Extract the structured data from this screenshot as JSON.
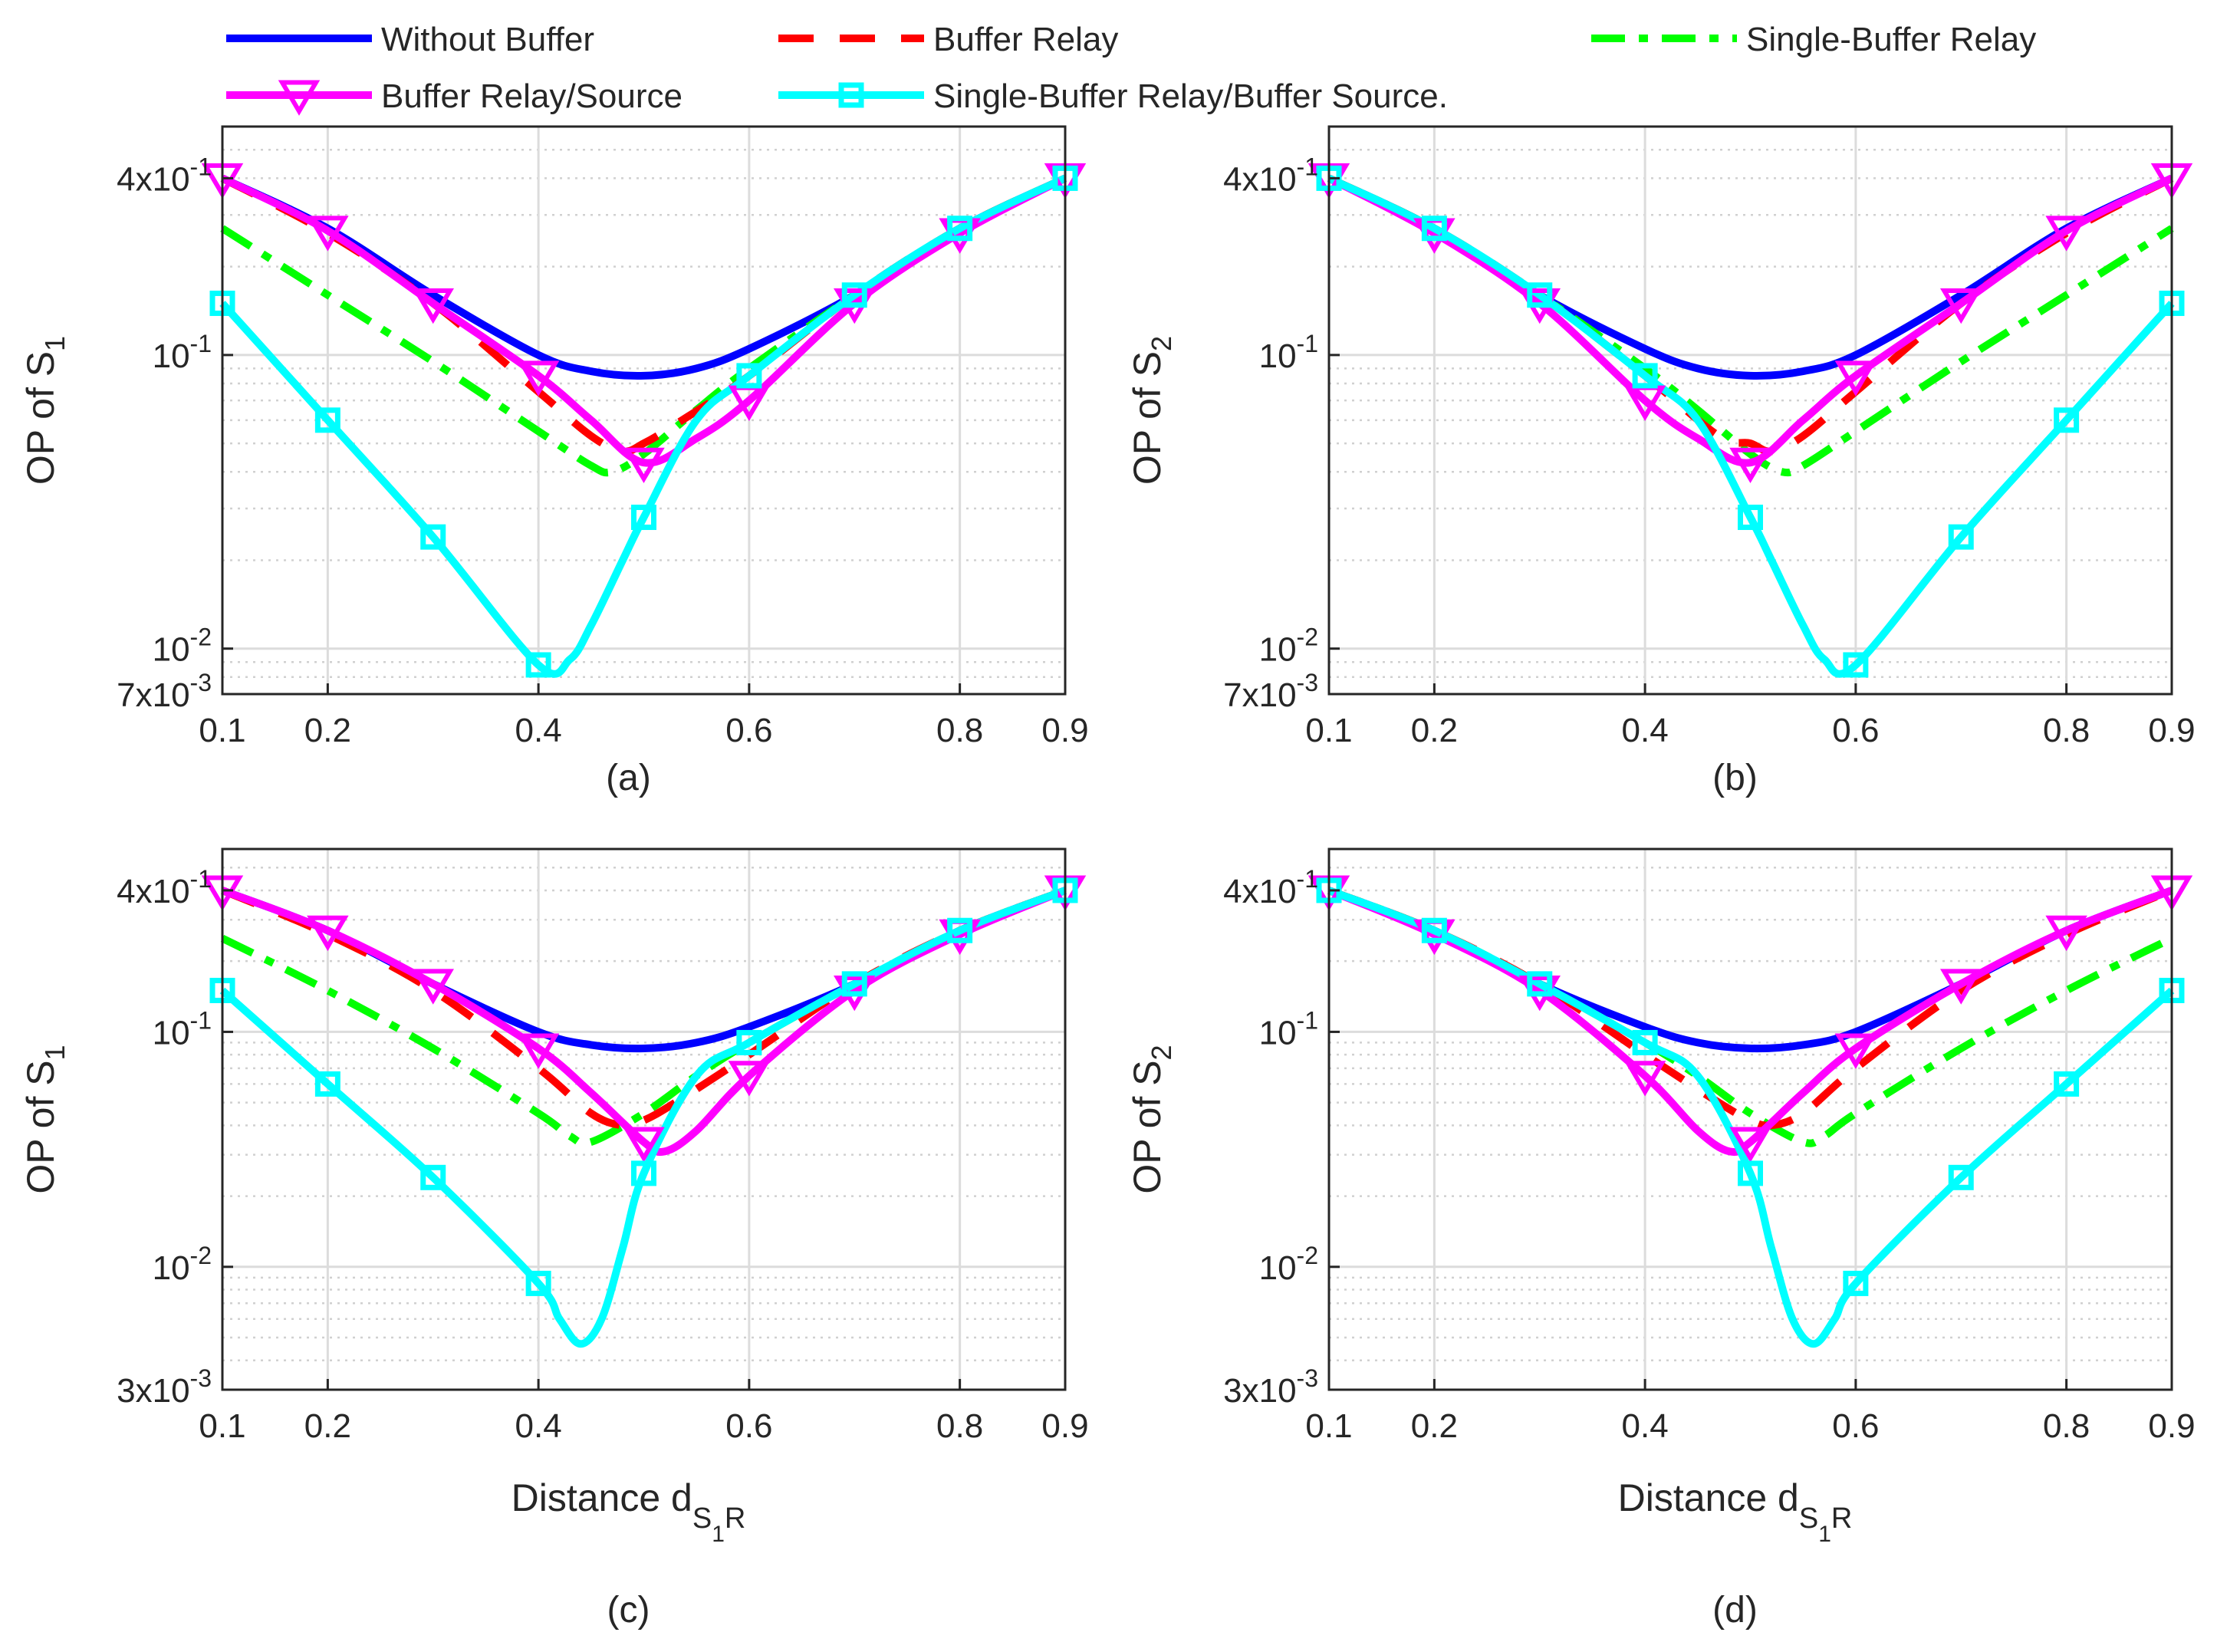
{
  "chart_data": {
    "type": "line",
    "legend": [
      {
        "key": "without",
        "label": "Without Buffer",
        "color": "#0000ff",
        "style": "solid",
        "marker": "none"
      },
      {
        "key": "br",
        "label": "Buffer Relay",
        "color": "#ff0000",
        "style": "dashed",
        "marker": "none"
      },
      {
        "key": "sbr",
        "label": "Single-Buffer Relay",
        "color": "#00ff00",
        "style": "dashdot",
        "marker": "none"
      },
      {
        "key": "brs",
        "label": "Buffer Relay/Source",
        "color": "#ff00ff",
        "style": "solid",
        "marker": "triangle-down"
      },
      {
        "key": "sbrbs",
        "label": "Single-Buffer Relay/Buffer Source.",
        "color": "#00ffff",
        "style": "solid",
        "marker": "square"
      }
    ],
    "xlabel": {
      "main": "Distance d",
      "sub1": "S",
      "sub2": "1",
      "sub3": "R"
    },
    "x": [
      0.1,
      0.2,
      0.3,
      0.4,
      0.5,
      0.6,
      0.7,
      0.8,
      0.9
    ],
    "xtick_labels": [
      "0.1",
      "0.2",
      "0.4",
      "0.6",
      "0.8",
      "0.9"
    ],
    "xlim": [
      0.1,
      0.9
    ],
    "subplots": [
      {
        "id": "a",
        "caption": "(a)",
        "ylabel": {
          "prefix": "OP of S",
          "sub": "1"
        },
        "ylim": [
          0.007,
          0.6
        ],
        "yticks": [
          {
            "value": 0.4,
            "mantissa": "4x10",
            "exp": "-1"
          },
          {
            "value": 0.1,
            "mantissa": "10",
            "exp": "-1"
          },
          {
            "value": 0.01,
            "mantissa": "10",
            "exp": "-2"
          },
          {
            "value": 0.007,
            "mantissa": "7x10",
            "exp": "-3"
          }
        ],
        "series": {
          "without": {
            "x": [
              0.1,
              0.2,
              0.3,
              0.4,
              0.45,
              0.5,
              0.55,
              0.6,
              0.7,
              0.8,
              0.9
            ],
            "y": [
              0.4,
              0.27,
              0.16,
              0.1,
              0.088,
              0.085,
              0.09,
              0.105,
              0.16,
              0.27,
              0.4
            ]
          },
          "br": {
            "x": [
              0.1,
              0.2,
              0.3,
              0.4,
              0.45,
              0.48,
              0.5,
              0.53,
              0.6,
              0.7,
              0.8,
              0.9
            ],
            "y": [
              0.4,
              0.26,
              0.15,
              0.075,
              0.053,
              0.047,
              0.05,
              0.058,
              0.085,
              0.16,
              0.27,
              0.4
            ]
          },
          "sbr": {
            "x": [
              0.1,
              0.2,
              0.3,
              0.4,
              0.45,
              0.47,
              0.5,
              0.55,
              0.6,
              0.7,
              0.8,
              0.9
            ],
            "y": [
              0.27,
              0.16,
              0.095,
              0.055,
              0.042,
              0.04,
              0.046,
              0.065,
              0.09,
              0.16,
              0.27,
              0.4
            ]
          },
          "brs": {
            "x": [
              0.1,
              0.2,
              0.3,
              0.4,
              0.45,
              0.5,
              0.55,
              0.6,
              0.7,
              0.8,
              0.9
            ],
            "y": [
              0.4,
              0.265,
              0.15,
              0.085,
              0.06,
              0.043,
              0.052,
              0.07,
              0.15,
              0.26,
              0.4
            ]
          },
          "sbrbs": {
            "x": [
              0.1,
              0.2,
              0.3,
              0.4,
              0.43,
              0.45,
              0.48,
              0.5,
              0.55,
              0.6,
              0.7,
              0.8,
              0.9
            ],
            "y": [
              0.15,
              0.06,
              0.024,
              0.0088,
              0.0092,
              0.012,
              0.02,
              0.028,
              0.06,
              0.085,
              0.16,
              0.27,
              0.4
            ]
          }
        },
        "markers": {
          "brs": [
            0.1,
            0.2,
            0.3,
            0.4,
            0.5,
            0.6,
            0.7,
            0.8,
            0.9
          ],
          "sbrbs": [
            0.1,
            0.2,
            0.3,
            0.4,
            0.5,
            0.6,
            0.7,
            0.8,
            0.9
          ]
        }
      },
      {
        "id": "b",
        "caption": "(b)",
        "ylabel": {
          "prefix": "OP of  S",
          "sub": "2"
        },
        "ylim": [
          0.007,
          0.6
        ],
        "yticks": [
          {
            "value": 0.4,
            "mantissa": "4x10",
            "exp": "-1"
          },
          {
            "value": 0.1,
            "mantissa": "10",
            "exp": "-1"
          },
          {
            "value": 0.01,
            "mantissa": "10",
            "exp": "-2"
          },
          {
            "value": 0.007,
            "mantissa": "7x10",
            "exp": "-3"
          }
        ],
        "series": {
          "without": {
            "x": [
              0.1,
              0.2,
              0.3,
              0.4,
              0.45,
              0.5,
              0.55,
              0.6,
              0.7,
              0.8,
              0.9
            ],
            "y": [
              0.4,
              0.27,
              0.16,
              0.105,
              0.09,
              0.085,
              0.088,
              0.1,
              0.16,
              0.27,
              0.4
            ]
          },
          "br": {
            "x": [
              0.1,
              0.2,
              0.3,
              0.4,
              0.47,
              0.5,
              0.52,
              0.55,
              0.6,
              0.7,
              0.8,
              0.9
            ],
            "y": [
              0.4,
              0.27,
              0.16,
              0.085,
              0.053,
              0.05,
              0.047,
              0.053,
              0.075,
              0.15,
              0.26,
              0.4
            ]
          },
          "sbr": {
            "x": [
              0.1,
              0.2,
              0.3,
              0.4,
              0.45,
              0.5,
              0.53,
              0.55,
              0.6,
              0.7,
              0.8,
              0.9
            ],
            "y": [
              0.4,
              0.27,
              0.16,
              0.09,
              0.065,
              0.046,
              0.04,
              0.042,
              0.055,
              0.095,
              0.16,
              0.27
            ]
          },
          "brs": {
            "x": [
              0.1,
              0.2,
              0.3,
              0.4,
              0.45,
              0.5,
              0.55,
              0.6,
              0.7,
              0.8,
              0.9
            ],
            "y": [
              0.4,
              0.26,
              0.15,
              0.07,
              0.052,
              0.043,
              0.06,
              0.085,
              0.15,
              0.265,
              0.4
            ]
          },
          "sbrbs": {
            "x": [
              0.1,
              0.2,
              0.3,
              0.4,
              0.45,
              0.5,
              0.52,
              0.55,
              0.57,
              0.6,
              0.7,
              0.8,
              0.9
            ],
            "y": [
              0.4,
              0.27,
              0.16,
              0.085,
              0.06,
              0.028,
              0.02,
              0.012,
              0.0092,
              0.0088,
              0.024,
              0.06,
              0.15
            ]
          }
        },
        "markers": {
          "brs": [
            0.1,
            0.2,
            0.3,
            0.4,
            0.5,
            0.6,
            0.7,
            0.8,
            0.9
          ],
          "sbrbs": [
            0.1,
            0.2,
            0.3,
            0.4,
            0.5,
            0.6,
            0.7,
            0.8,
            0.9
          ]
        }
      },
      {
        "id": "c",
        "caption": "(c)",
        "ylabel": {
          "prefix": "OP of  S",
          "sub": "1"
        },
        "ylim": [
          0.003,
          0.6
        ],
        "yticks": [
          {
            "value": 0.4,
            "mantissa": "4x10",
            "exp": "-1"
          },
          {
            "value": 0.1,
            "mantissa": "10",
            "exp": "-1"
          },
          {
            "value": 0.01,
            "mantissa": "10",
            "exp": "-2"
          },
          {
            "value": 0.003,
            "mantissa": "3x10",
            "exp": "-3"
          }
        ],
        "series": {
          "without": {
            "x": [
              0.1,
              0.2,
              0.3,
              0.4,
              0.45,
              0.5,
              0.55,
              0.6,
              0.7,
              0.8,
              0.9
            ],
            "y": [
              0.4,
              0.27,
              0.16,
              0.1,
              0.088,
              0.085,
              0.09,
              0.105,
              0.16,
              0.27,
              0.4
            ]
          },
          "br": {
            "x": [
              0.1,
              0.2,
              0.3,
              0.4,
              0.45,
              0.48,
              0.5,
              0.53,
              0.6,
              0.7,
              0.8,
              0.9
            ],
            "y": [
              0.4,
              0.26,
              0.15,
              0.07,
              0.045,
              0.04,
              0.042,
              0.05,
              0.08,
              0.16,
              0.27,
              0.4
            ]
          },
          "sbr": {
            "x": [
              0.1,
              0.2,
              0.3,
              0.4,
              0.43,
              0.45,
              0.5,
              0.55,
              0.6,
              0.7,
              0.8,
              0.9
            ],
            "y": [
              0.25,
              0.15,
              0.085,
              0.045,
              0.036,
              0.034,
              0.045,
              0.065,
              0.09,
              0.16,
              0.27,
              0.4
            ]
          },
          "brs": {
            "x": [
              0.1,
              0.2,
              0.3,
              0.4,
              0.45,
              0.5,
              0.52,
              0.55,
              0.6,
              0.7,
              0.8,
              0.9
            ],
            "y": [
              0.4,
              0.27,
              0.16,
              0.085,
              0.055,
              0.034,
              0.031,
              0.038,
              0.065,
              0.15,
              0.26,
              0.4
            ]
          },
          "sbrbs": {
            "x": [
              0.1,
              0.2,
              0.3,
              0.4,
              0.42,
              0.44,
              0.46,
              0.48,
              0.5,
              0.55,
              0.6,
              0.7,
              0.8,
              0.9
            ],
            "y": [
              0.15,
              0.06,
              0.024,
              0.0085,
              0.006,
              0.0047,
              0.006,
              0.012,
              0.025,
              0.065,
              0.09,
              0.16,
              0.27,
              0.4
            ]
          }
        },
        "markers": {
          "brs": [
            0.1,
            0.2,
            0.3,
            0.4,
            0.5,
            0.6,
            0.7,
            0.8,
            0.9
          ],
          "sbrbs": [
            0.1,
            0.2,
            0.3,
            0.4,
            0.5,
            0.6,
            0.7,
            0.8,
            0.9
          ]
        }
      },
      {
        "id": "d",
        "caption": "(d)",
        "ylabel": {
          "prefix": "OP of  S",
          "sub": "2"
        },
        "ylim": [
          0.003,
          0.6
        ],
        "yticks": [
          {
            "value": 0.4,
            "mantissa": "4x10",
            "exp": "-1"
          },
          {
            "value": 0.1,
            "mantissa": "10",
            "exp": "-1"
          },
          {
            "value": 0.01,
            "mantissa": "10",
            "exp": "-2"
          },
          {
            "value": 0.003,
            "mantissa": "3x10",
            "exp": "-3"
          }
        ],
        "series": {
          "without": {
            "x": [
              0.1,
              0.2,
              0.3,
              0.4,
              0.45,
              0.5,
              0.55,
              0.6,
              0.7,
              0.8,
              0.9
            ],
            "y": [
              0.4,
              0.27,
              0.16,
              0.105,
              0.09,
              0.085,
              0.088,
              0.1,
              0.16,
              0.27,
              0.4
            ]
          },
          "br": {
            "x": [
              0.1,
              0.2,
              0.3,
              0.4,
              0.47,
              0.5,
              0.52,
              0.55,
              0.6,
              0.7,
              0.8,
              0.9
            ],
            "y": [
              0.4,
              0.27,
              0.16,
              0.08,
              0.05,
              0.042,
              0.04,
              0.045,
              0.07,
              0.15,
              0.26,
              0.4
            ]
          },
          "sbr": {
            "x": [
              0.1,
              0.2,
              0.3,
              0.4,
              0.45,
              0.5,
              0.55,
              0.57,
              0.6,
              0.7,
              0.8,
              0.9
            ],
            "y": [
              0.4,
              0.27,
              0.16,
              0.09,
              0.065,
              0.045,
              0.034,
              0.036,
              0.045,
              0.085,
              0.15,
              0.25
            ]
          },
          "brs": {
            "x": [
              0.1,
              0.2,
              0.3,
              0.4,
              0.45,
              0.48,
              0.5,
              0.55,
              0.6,
              0.7,
              0.8,
              0.9
            ],
            "y": [
              0.4,
              0.26,
              0.15,
              0.065,
              0.038,
              0.031,
              0.034,
              0.055,
              0.085,
              0.16,
              0.27,
              0.4
            ]
          },
          "sbrbs": {
            "x": [
              0.1,
              0.2,
              0.3,
              0.4,
              0.45,
              0.5,
              0.52,
              0.54,
              0.56,
              0.58,
              0.6,
              0.7,
              0.8,
              0.9
            ],
            "y": [
              0.4,
              0.27,
              0.16,
              0.09,
              0.065,
              0.025,
              0.012,
              0.006,
              0.0047,
              0.006,
              0.0085,
              0.024,
              0.06,
              0.15
            ]
          }
        },
        "markers": {
          "brs": [
            0.1,
            0.2,
            0.3,
            0.4,
            0.5,
            0.6,
            0.7,
            0.8,
            0.9
          ],
          "sbrbs": [
            0.1,
            0.2,
            0.3,
            0.4,
            0.5,
            0.6,
            0.7,
            0.8,
            0.9
          ]
        }
      }
    ]
  }
}
